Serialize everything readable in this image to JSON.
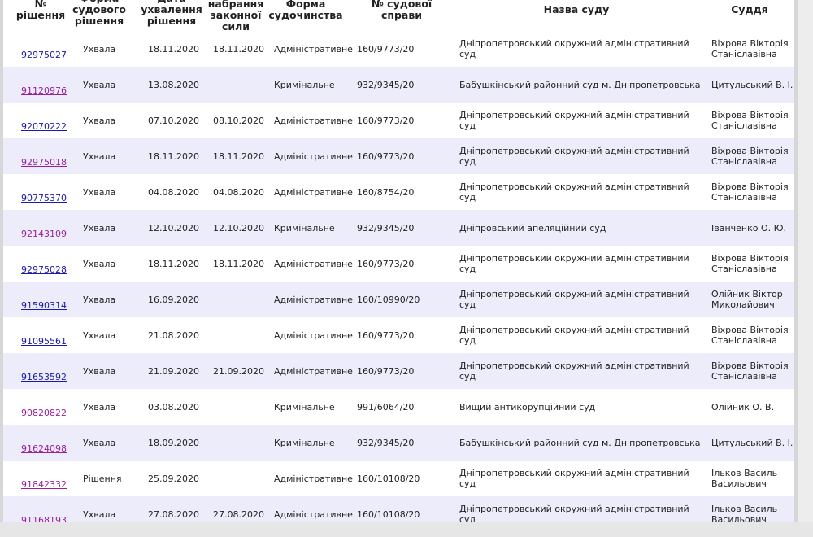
{
  "headers": {
    "id": "№ рішення",
    "type": "Форма\nсудового\nрішення",
    "date": "Дата\nухвалення\nрішення",
    "effective": "Дата\nнабрання\nзаконної\nсили",
    "form": "Форма\nсудочинства",
    "case": "№ судової справи",
    "court": "Назва суду",
    "judge": "Суддя"
  },
  "rows": [
    {
      "id": "92975027",
      "visited": false,
      "type": "Ухвала",
      "date": "18.11.2020",
      "effective": "18.11.2020",
      "form": "Адміністративне",
      "case": "160/9773/20",
      "court": "Дніпропетровський окружний адміністративний суд",
      "judge": "Віхрова Вікторія\nСтаніславівна"
    },
    {
      "id": "91120976",
      "visited": true,
      "type": "Ухвала",
      "date": "13.08.2020",
      "effective": "",
      "form": "Кримінальне",
      "case": "932/9345/20",
      "court": "Бабушкінський районний суд м. Дніпропетровська",
      "judge": "Цитульський В. І."
    },
    {
      "id": "92070222",
      "visited": false,
      "type": "Ухвала",
      "date": "07.10.2020",
      "effective": "08.10.2020",
      "form": "Адміністративне",
      "case": "160/9773/20",
      "court": "Дніпропетровський окружний адміністративний суд",
      "judge": "Віхрова Вікторія\nСтаніславівна"
    },
    {
      "id": "92975018",
      "visited": true,
      "type": "Ухвала",
      "date": "18.11.2020",
      "effective": "18.11.2020",
      "form": "Адміністративне",
      "case": "160/9773/20",
      "court": "Дніпропетровський окружний адміністративний суд",
      "judge": "Віхрова Вікторія\nСтаніславівна"
    },
    {
      "id": "90775370",
      "visited": false,
      "type": "Ухвала",
      "date": "04.08.2020",
      "effective": "04.08.2020",
      "form": "Адміністративне",
      "case": "160/8754/20",
      "court": "Дніпропетровський окружний адміністративний суд",
      "judge": "Віхрова Вікторія\nСтаніславівна"
    },
    {
      "id": "92143109",
      "visited": true,
      "type": "Ухвала",
      "date": "12.10.2020",
      "effective": "12.10.2020",
      "form": "Кримінальне",
      "case": "932/9345/20",
      "court": "Дніпровський апеляційний суд",
      "judge": "Іванченко О. Ю."
    },
    {
      "id": "92975028",
      "visited": false,
      "type": "Ухвала",
      "date": "18.11.2020",
      "effective": "18.11.2020",
      "form": "Адміністративне",
      "case": "160/9773/20",
      "court": "Дніпропетровський окружний адміністративний суд",
      "judge": "Віхрова Вікторія\nСтаніславівна"
    },
    {
      "id": "91590314",
      "visited": false,
      "type": "Ухвала",
      "date": "16.09.2020",
      "effective": "",
      "form": "Адміністративне",
      "case": "160/10990/20",
      "court": "Дніпропетровський окружний адміністративний суд",
      "judge": "Олійник Віктор\nМиколайович"
    },
    {
      "id": "91095561",
      "visited": false,
      "type": "Ухвала",
      "date": "21.08.2020",
      "effective": "",
      "form": "Адміністративне",
      "case": "160/9773/20",
      "court": "Дніпропетровський окружний адміністративний суд",
      "judge": "Віхрова Вікторія\nСтаніславівна"
    },
    {
      "id": "91653592",
      "visited": false,
      "type": "Ухвала",
      "date": "21.09.2020",
      "effective": "21.09.2020",
      "form": "Адміністративне",
      "case": "160/9773/20",
      "court": "Дніпропетровський окружний адміністративний суд",
      "judge": "Віхрова Вікторія\nСтаніславівна"
    },
    {
      "id": "90820822",
      "visited": true,
      "type": "Ухвала",
      "date": "03.08.2020",
      "effective": "",
      "form": "Кримінальне",
      "case": "991/6064/20",
      "court": "Вищий антикорупційний суд",
      "judge": "Олійник О. В."
    },
    {
      "id": "91624098",
      "visited": true,
      "type": "Ухвала",
      "date": "18.09.2020",
      "effective": "",
      "form": "Кримінальне",
      "case": "932/9345/20",
      "court": "Бабушкінський районний суд м. Дніпропетровська",
      "judge": "Цитульський В. І."
    },
    {
      "id": "91842332",
      "visited": true,
      "type": "Рішення",
      "date": "25.09.2020",
      "effective": "",
      "form": "Адміністративне",
      "case": "160/10108/20",
      "court": "Дніпропетровський окружний адміністративний суд",
      "judge": "Ільков Василь\nВасильович"
    },
    {
      "id": "91168193",
      "visited": true,
      "type": "Ухвала",
      "date": "27.08.2020",
      "effective": "27.08.2020",
      "form": "Адміністративне",
      "case": "160/10108/20",
      "court": "Дніпропетровський окружний адміністративний суд",
      "judge": "Ільков Василь\nВасильович"
    }
  ],
  "colors": {
    "link": "#1a1aa6",
    "visited": "#9b1f9b",
    "alt_row": "#ececfa"
  }
}
